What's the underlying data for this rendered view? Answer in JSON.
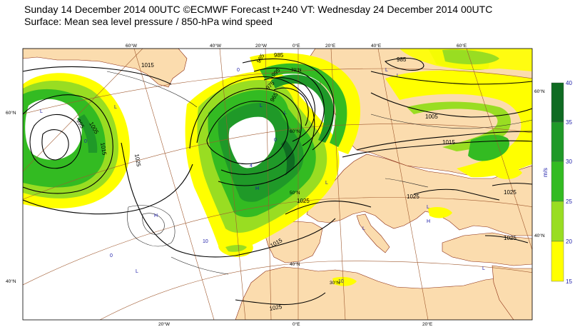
{
  "title_line1": "Sunday 14 December 2014 00UTC ©ECMWF Forecast t+240 VT: Wednesday 24 December 2014 00UTC",
  "title_line2": "Surface: Mean sea level pressure / 850-hPa wind speed",
  "colors": {
    "sea": "#ffffff",
    "land": "#fbdcae",
    "coast": "#8a2a10",
    "graticule": "#a05a30",
    "isobar": "#000000",
    "wind_15_20": "#ffff00",
    "wind_20_25": "#99dd22",
    "wind_25_30": "#33bb22",
    "wind_30_35": "#1f9928",
    "wind_35_40": "#0f6b22"
  },
  "colorbar": {
    "unit": "m/s",
    "ticks": [
      "15",
      "20",
      "25",
      "30",
      "35",
      "40"
    ],
    "colors": [
      "#ffff00",
      "#99dd22",
      "#33bb22",
      "#1f9928",
      "#0f6b22"
    ]
  },
  "lon_labels_top": [
    "60°W",
    "40°W",
    "20°W",
    "0°E",
    "20°E",
    "40°E",
    "60°E"
  ],
  "lon_labels_bottom": [
    "20°W",
    "0°E",
    "20°E"
  ],
  "lat_labels_left": [
    "60°N",
    "40°N"
  ],
  "lat_labels_right": [
    "60°N",
    "40°N"
  ],
  "lat_labels_inner": [
    "70°N",
    "60°N",
    "50°N",
    "40°N",
    "30°N"
  ],
  "isobar_labels": [
    "1015",
    "985",
    "985",
    "985",
    "1005",
    "995",
    "1015",
    "1025",
    "1005",
    "1015",
    "995",
    "975",
    "965",
    "1025",
    "1025",
    "1025",
    "1015",
    "1025",
    "1025"
  ],
  "pressure_centers": [
    "L",
    "L",
    "L",
    "L",
    "L",
    "L",
    "L",
    "L",
    "L",
    "L",
    "L",
    "H",
    "H",
    "H"
  ],
  "point_values": [
    "0",
    "0",
    "10",
    "0",
    "10",
    "4",
    "0"
  ]
}
